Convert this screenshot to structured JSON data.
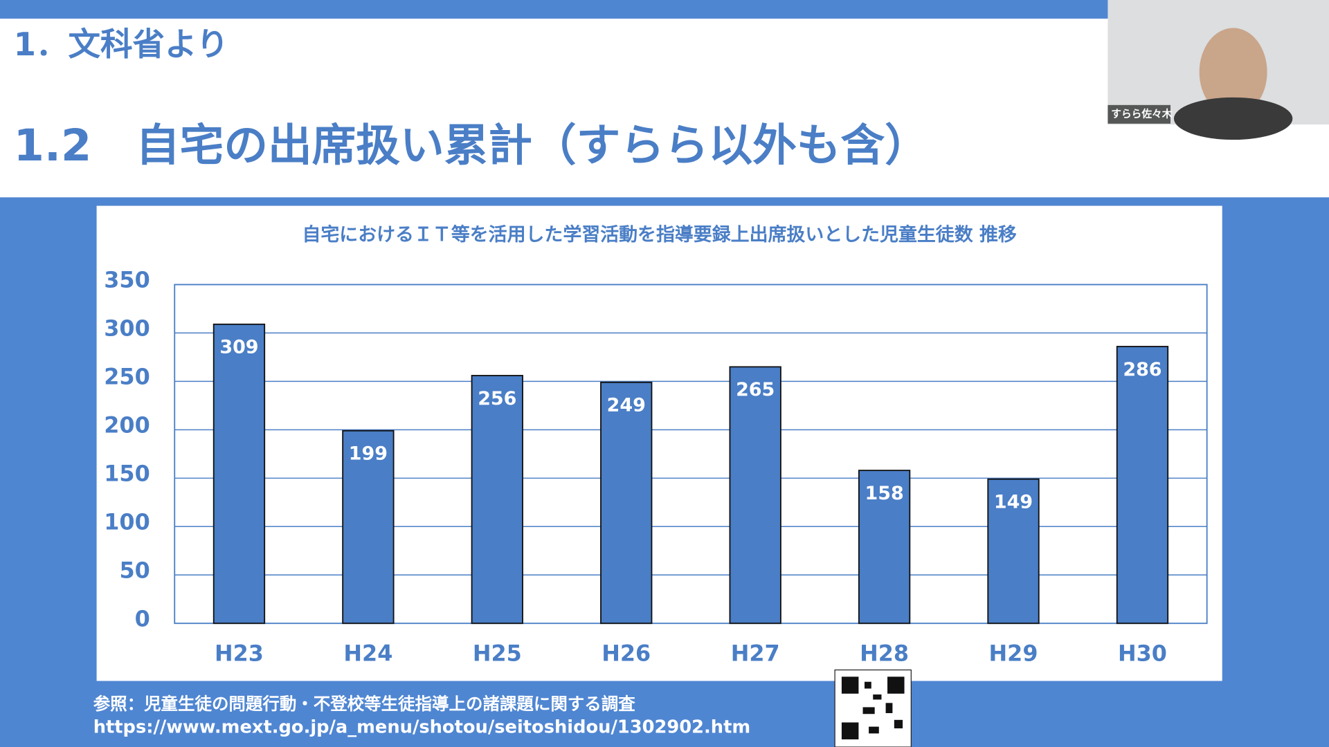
{
  "slide": {
    "section": "1．文科省より",
    "title": "1.2　自宅の出席扱い累計（すらら以外も含）"
  },
  "chart_data": {
    "type": "bar",
    "title": "自宅におけるＩＴ等を活用した学習活動を指導要録上出席扱いとした児童生徒数 推移",
    "categories": [
      "H23",
      "H24",
      "H25",
      "H26",
      "H27",
      "H28",
      "H29",
      "H30"
    ],
    "values": [
      309,
      199,
      256,
      249,
      265,
      158,
      149,
      286
    ],
    "color": "#4a7ec6",
    "ylim": [
      0,
      350
    ],
    "yticks": [
      0,
      50,
      100,
      150,
      200,
      250,
      300,
      350
    ],
    "grid": true
  },
  "reference": {
    "label": "参照：児童生徒の問題行動・不登校等生徒指導上の諸課題に関する調査",
    "url": "https://www.mext.go.jp/a_menu/shotou/seitoshidou/1302902.htm"
  },
  "participant": {
    "name": "すらら佐々木"
  }
}
